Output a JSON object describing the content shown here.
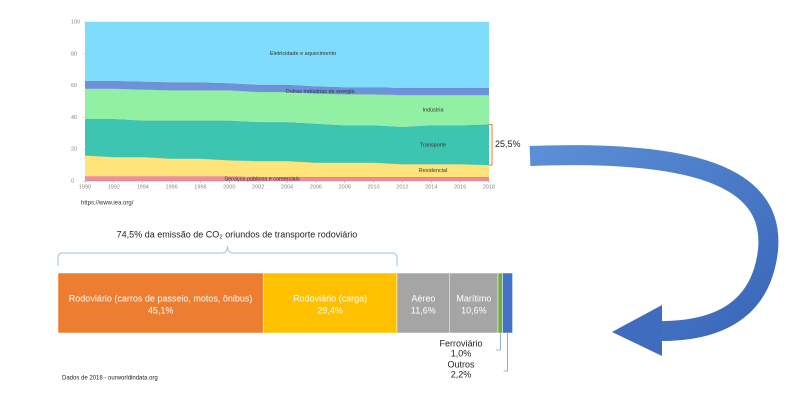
{
  "chart_data": [
    {
      "type": "area",
      "x": [
        1990,
        1992,
        1994,
        1996,
        1998,
        2000,
        2002,
        2004,
        2006,
        2008,
        2010,
        2012,
        2014,
        2016,
        2018
      ],
      "xlim": [
        1990,
        2018
      ],
      "xticks": [
        1990,
        1992,
        1994,
        1996,
        1998,
        2000,
        2002,
        2004,
        2006,
        2008,
        2010,
        2012,
        2014,
        2016,
        2018
      ],
      "ylim": [
        0,
        100
      ],
      "yticks": [
        0,
        20,
        40,
        60,
        80,
        100
      ],
      "series": [
        {
          "name": "Serviços públicos e comerciais",
          "color": "#f28a9c",
          "values": [
            3,
            3,
            3,
            3,
            3,
            3,
            2.5,
            2.5,
            2.5,
            2.5,
            2.5,
            2.5,
            2.5,
            2.5,
            2.5
          ]
        },
        {
          "name": "Residencial",
          "color": "#ffe47c",
          "values": [
            13,
            12,
            12,
            11,
            11,
            10,
            10,
            10,
            9,
            9,
            9,
            8,
            8,
            8,
            7.5
          ]
        },
        {
          "name": "Transporte",
          "color": "#3ec5b2",
          "values": [
            23,
            24,
            23,
            24,
            24,
            25,
            24.5,
            24.5,
            24.5,
            23.5,
            23.5,
            23.5,
            24.5,
            24.5,
            25.5
          ]
        },
        {
          "name": "Indústria",
          "color": "#92f0a4",
          "values": [
            19,
            19,
            19.5,
            19,
            19,
            19,
            19,
            19,
            19,
            19.5,
            19.5,
            20,
            19,
            19,
            18.5
          ]
        },
        {
          "name": "Outras indústrias de energia",
          "color": "#6d92da",
          "values": [
            5,
            5,
            5,
            5,
            5,
            4.5,
            4.5,
            4.5,
            4.5,
            4.5,
            4.5,
            4.5,
            4.5,
            4.5,
            4.5
          ]
        },
        {
          "name": "Eletricidade e aquecimento",
          "color": "#80dcfc",
          "values": [
            37,
            37,
            37.5,
            38,
            38,
            38.5,
            39.5,
            39.5,
            40.5,
            41,
            41,
            41.5,
            41.5,
            41.5,
            41.5
          ]
        }
      ],
      "source": "https://www.iea.org/",
      "annotation": "25,5%"
    },
    {
      "type": "stacked-bar",
      "title": "74,5% da emissão de CO₂ oriundos de transporte rodoviário",
      "series": [
        {
          "name": "Rodoviário (carros de passeio, motos, ônibus)",
          "color": "#ed7d31",
          "values": [
            45.1
          ],
          "value_labels": [
            "45,1%"
          ]
        },
        {
          "name": "Rodoviário (carga)",
          "color": "#ffc000",
          "values": [
            29.4
          ],
          "value_labels": [
            "29,4%"
          ]
        },
        {
          "name": "Aéreo",
          "color": "#a5a5a5",
          "values": [
            11.6
          ],
          "value_labels": [
            "11,6%"
          ]
        },
        {
          "name": "Marítimo",
          "color": "#a5a5a5",
          "values": [
            10.6
          ],
          "value_labels": [
            "10,6%"
          ]
        },
        {
          "name": "Ferroviário",
          "color": "#70ad47",
          "values": [
            1.0
          ],
          "value_labels": [
            "1,0%"
          ]
        },
        {
          "name": "Outros",
          "color": "#4472c4",
          "values": [
            2.2
          ],
          "value_labels": [
            "2,2%"
          ]
        }
      ],
      "note": "Dados de 2018 - ourworldindata.org"
    }
  ]
}
